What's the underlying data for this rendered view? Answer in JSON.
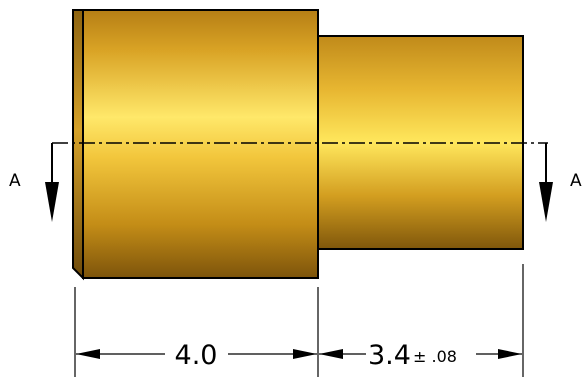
{
  "section": {
    "label_left": "A",
    "label_right": "A"
  },
  "dimensions": {
    "length_1": {
      "value": "4.0"
    },
    "length_2": {
      "value": "3.4",
      "tolerance": "± .08"
    }
  },
  "colors": {
    "part_light": "#ffe55a",
    "part_mid": "#e3ad1e",
    "part_dark": "#8a5d0b",
    "outline": "#000000"
  }
}
